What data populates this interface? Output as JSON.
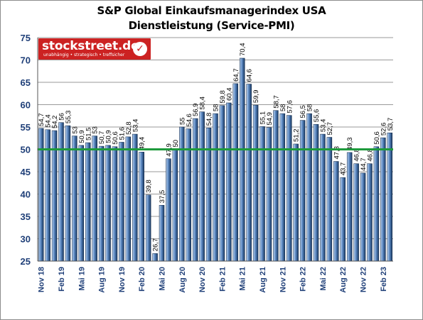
{
  "chart_data": {
    "type": "bar",
    "title": "S&P Global Einkaufsmanagerindex USA",
    "subtitle": "Dienstleistung (Service-PMI)",
    "xlabel": "",
    "ylabel": "",
    "ylim": [
      25,
      75
    ],
    "yticks": [
      25,
      30,
      35,
      40,
      45,
      50,
      55,
      60,
      65,
      70,
      75
    ],
    "grid": true,
    "reference_line": 50,
    "colors": {
      "bar_light": "#bcd3ee",
      "bar_mid": "#5d8ac4",
      "bar_dark": "#16365f",
      "reference_line": "#1e9a3c",
      "axis_tick_labels": "#1f3f78",
      "grid": "#9a9a9a"
    },
    "x_tick_labels": [
      {
        "index": 0,
        "label": "Nov 18"
      },
      {
        "index": 3,
        "label": "Feb 19"
      },
      {
        "index": 6,
        "label": "Mai 19"
      },
      {
        "index": 9,
        "label": "Aug 19"
      },
      {
        "index": 12,
        "label": "Nov 19"
      },
      {
        "index": 15,
        "label": "Feb 20"
      },
      {
        "index": 18,
        "label": "Mai 20"
      },
      {
        "index": 21,
        "label": "Aug 20"
      },
      {
        "index": 24,
        "label": "Nov 20"
      },
      {
        "index": 27,
        "label": "Feb 21"
      },
      {
        "index": 30,
        "label": "Mai 21"
      },
      {
        "index": 33,
        "label": "Aug 21"
      },
      {
        "index": 36,
        "label": "Nov 21"
      },
      {
        "index": 39,
        "label": "Feb 22"
      },
      {
        "index": 42,
        "label": "Mai 22"
      },
      {
        "index": 45,
        "label": "Aug 22"
      },
      {
        "index": 48,
        "label": "Nov 22"
      },
      {
        "index": 51,
        "label": "Feb 23"
      }
    ],
    "values": [
      54.7,
      54.4,
      54.2,
      56,
      55.3,
      53,
      50.9,
      51.5,
      53,
      50.7,
      50.9,
      50.6,
      51.6,
      52.8,
      53.4,
      49.4,
      39.8,
      26.7,
      37.5,
      47.9,
      50,
      55,
      54.6,
      56.9,
      58.4,
      54.8,
      58,
      59.8,
      60.4,
      64.7,
      70.4,
      64.6,
      59.9,
      55.1,
      54.9,
      58.7,
      58,
      57.6,
      51.2,
      56.5,
      58,
      55.6,
      53.4,
      52.7,
      47.3,
      43.7,
      49.3,
      46.8,
      44.7,
      46.8,
      50.6,
      52.6,
      53.7
    ],
    "data_labels": [
      "54,7",
      "54,4",
      "54,2",
      "56",
      "55,3",
      "53",
      "50,9",
      "51,5",
      "53",
      "50,7",
      "50,9",
      "50,6",
      "51,6",
      "52,8",
      "53,4",
      "49,4",
      "39,8",
      "26,7",
      "37,5",
      "47,9",
      "50",
      "55",
      "54,6",
      "56,9",
      "58,4",
      "54,8",
      "58",
      "59,8",
      "60,4",
      "64,7",
      "70,4",
      "64,6",
      "59,9",
      "55,1",
      "54,9",
      "58,7",
      "58",
      "57,6",
      "51,2",
      "56,5",
      "58",
      "55,6",
      "53,4",
      "52,7",
      "47,3",
      "43,7",
      "49,3",
      "46,8",
      "44,7",
      "46,8",
      "50,6",
      "52,6",
      "53,7"
    ]
  },
  "logo": {
    "name": "stockstreet.de",
    "tagline": "unabhängig • strategisch • treffsicher",
    "check_glyph": "✓"
  }
}
